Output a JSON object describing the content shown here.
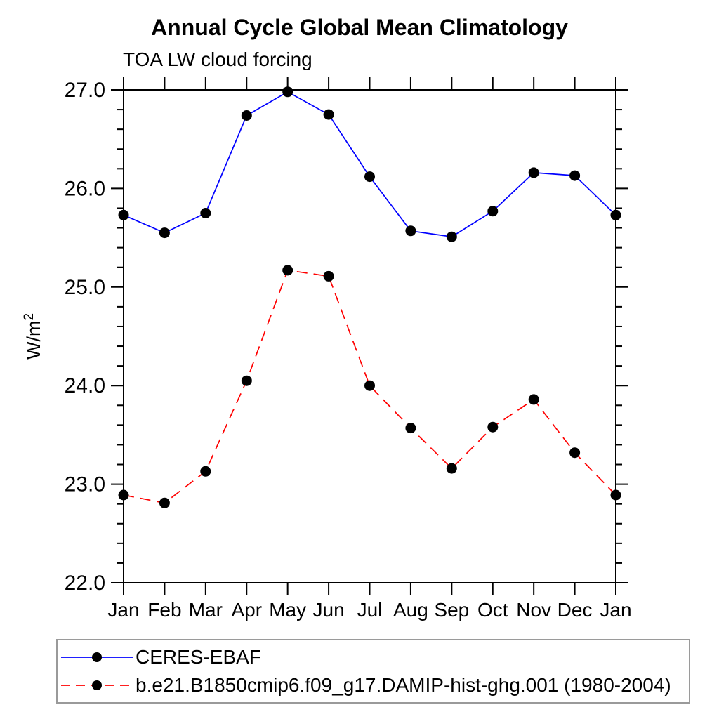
{
  "chart_data": {
    "type": "line",
    "title": "Annual Cycle Global Mean Climatology",
    "subtitle": "TOA LW cloud forcing",
    "ylabel": "W/m²",
    "xlabel": "",
    "x": [
      "Jan",
      "Feb",
      "Mar",
      "Apr",
      "May",
      "Jun",
      "Jul",
      "Aug",
      "Sep",
      "Oct",
      "Nov",
      "Dec",
      "Jan"
    ],
    "ylim": [
      22.0,
      27.0
    ],
    "ytick_labels": [
      "22.0",
      "23.0",
      "24.0",
      "25.0",
      "26.0",
      "27.0"
    ],
    "yticks_major": [
      22.0,
      23.0,
      24.0,
      25.0,
      26.0,
      27.0
    ],
    "ytick_minor_step": 0.2,
    "grid": false,
    "legend_position": "bottom-left-box",
    "series": [
      {
        "name": "CERES-EBAF",
        "color": "#0000ff",
        "line_style": "solid",
        "marker": "filled-circle",
        "marker_color": "#000000",
        "values": [
          25.73,
          25.55,
          25.75,
          26.74,
          26.98,
          26.75,
          26.12,
          25.57,
          25.51,
          25.77,
          26.16,
          26.13,
          25.73
        ]
      },
      {
        "name": "b.e21.B1850cmip6.f09_g17.DAMIP-hist-ghg.001 (1980-2004)",
        "color": "#ff0000",
        "line_style": "dashed",
        "marker": "filled-circle",
        "marker_color": "#000000",
        "values": [
          22.89,
          22.81,
          23.13,
          24.05,
          25.17,
          25.11,
          24.0,
          23.57,
          23.16,
          23.58,
          23.86,
          23.32,
          22.89
        ]
      }
    ]
  },
  "colors": {
    "axis": "#000000",
    "tick_label": "#000000",
    "legend_border": "#9a9a9a"
  }
}
